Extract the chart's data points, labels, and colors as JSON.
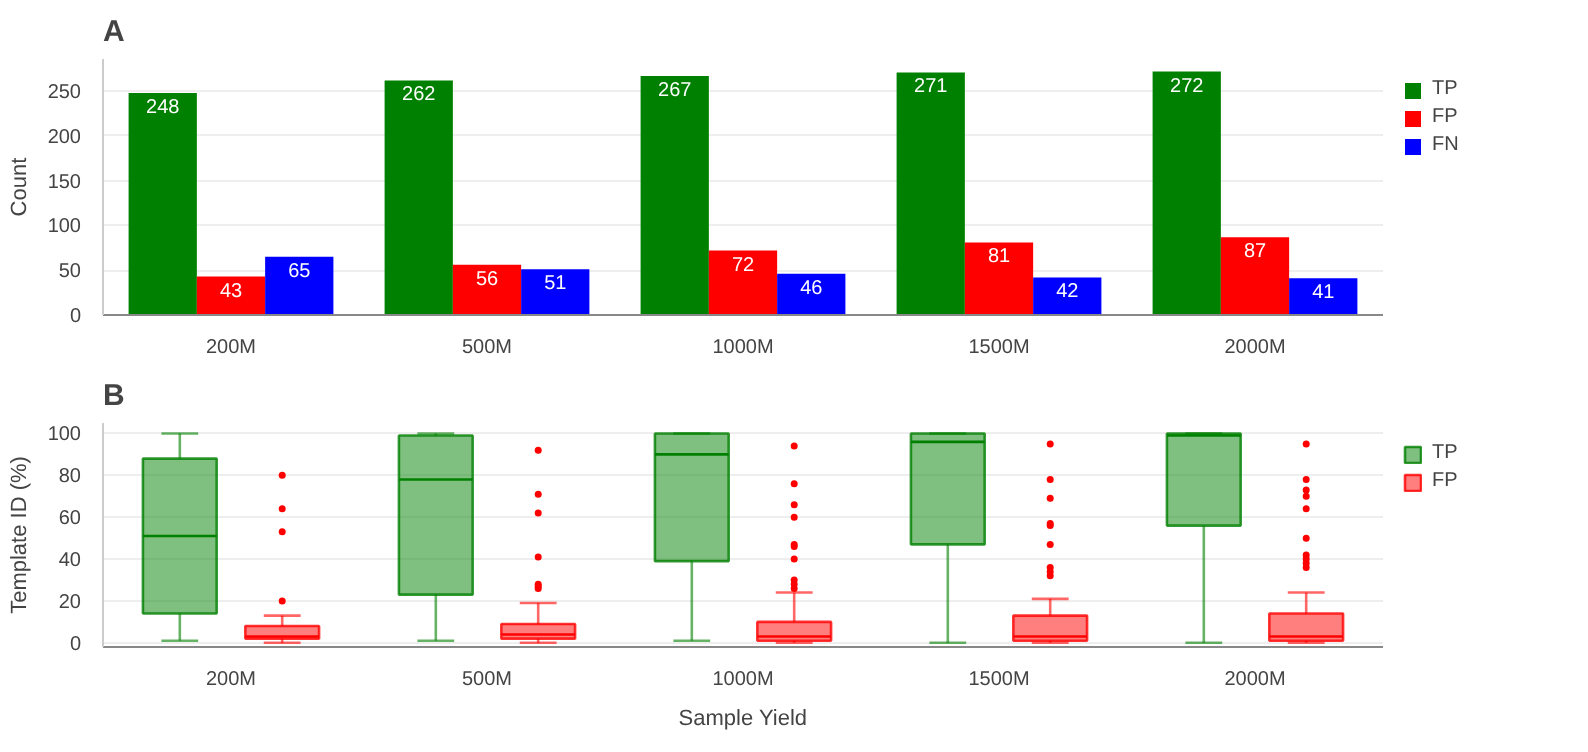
{
  "chart_data": [
    {
      "type": "bar",
      "title": "A",
      "ylabel": "Count",
      "categories": [
        "200M",
        "500M",
        "1000M",
        "1500M",
        "2000M"
      ],
      "ylim": [
        0,
        286
      ],
      "yticks": [
        0,
        50,
        100,
        150,
        200,
        250
      ],
      "grid": "y",
      "legend": "top right",
      "data_labels": true,
      "series": [
        {
          "name": "TP",
          "color": "#008000",
          "values": [
            248,
            262,
            267,
            271,
            272
          ]
        },
        {
          "name": "FP",
          "color": "#ff0000",
          "values": [
            43,
            56,
            72,
            81,
            87
          ]
        },
        {
          "name": "FN",
          "color": "#0000ff",
          "values": [
            65,
            51,
            46,
            42,
            41
          ]
        }
      ]
    },
    {
      "type": "box",
      "title": "B",
      "ylabel": "Template ID (%)",
      "xlabel": "Sample Yield",
      "categories": [
        "200M",
        "500M",
        "1000M",
        "1500M",
        "2000M"
      ],
      "ylim": [
        -2,
        105
      ],
      "yticks": [
        0,
        20,
        40,
        60,
        80,
        100
      ],
      "grid": "y",
      "legend": "top right",
      "series": [
        {
          "name": "TP",
          "color": "#008000",
          "boxes": [
            {
              "low": 1,
              "q1": 14,
              "median": 51,
              "q3": 88,
              "high": 100
            },
            {
              "low": 1,
              "q1": 23,
              "median": 78,
              "q3": 99,
              "high": 100
            },
            {
              "low": 1,
              "q1": 39,
              "median": 90,
              "q3": 100,
              "high": 100
            },
            {
              "low": 0,
              "q1": 47,
              "median": 96,
              "q3": 100,
              "high": 100
            },
            {
              "low": 0,
              "q1": 56,
              "median": 99,
              "q3": 100,
              "high": 100
            }
          ]
        },
        {
          "name": "FP",
          "color": "#ff0000",
          "boxes": [
            {
              "low": 0,
              "q1": 2,
              "median": 3,
              "q3": 8,
              "high": 13,
              "outliers": [
                80,
                64,
                53,
                20
              ]
            },
            {
              "low": 0,
              "q1": 2,
              "median": 4,
              "q3": 9,
              "high": 19,
              "outliers": [
                92,
                71,
                62,
                41,
                28,
                27,
                26
              ]
            },
            {
              "low": 0,
              "q1": 1,
              "median": 3,
              "q3": 10,
              "high": 24,
              "outliers": [
                94,
                76,
                66,
                60,
                47,
                46,
                40,
                30,
                28,
                26
              ]
            },
            {
              "low": 0,
              "q1": 1,
              "median": 3,
              "q3": 13,
              "high": 21,
              "outliers": [
                95,
                78,
                69,
                57,
                56,
                47,
                36,
                34,
                32
              ]
            },
            {
              "low": 0,
              "q1": 1,
              "median": 3,
              "q3": 14,
              "high": 24,
              "outliers": [
                95,
                78,
                73,
                70,
                64,
                50,
                42,
                40,
                38,
                36
              ]
            }
          ]
        }
      ]
    }
  ]
}
